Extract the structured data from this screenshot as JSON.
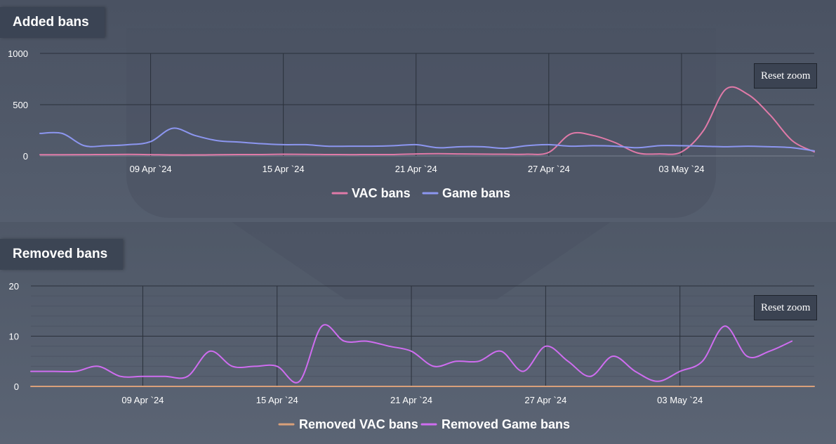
{
  "sections": {
    "added_title": "Added bans",
    "removed_title": "Removed bans",
    "reset_zoom_label": "Reset zoom"
  },
  "colors": {
    "vac": "#e07aa8",
    "game": "#8c96f0",
    "removed_vac": "#d9a07a",
    "removed_game": "#cf6df0",
    "gridline": "#2a303b"
  },
  "chart_data": [
    {
      "type": "line",
      "title": "Added bans",
      "ylim": [
        0,
        1000
      ],
      "yticks": [
        "0",
        "500",
        "1000"
      ],
      "x_range": [
        "2024-04-04",
        "2024-05-09"
      ],
      "xtick_dates": [
        "2024-04-09",
        "2024-04-15",
        "2024-04-21",
        "2024-04-27",
        "2024-05-03"
      ],
      "xtick_labels": [
        "09 Apr `24",
        "15 Apr `24",
        "21 Apr `24",
        "27 Apr `24",
        "03 May `24"
      ],
      "legend": "bottom-center",
      "series": [
        {
          "name": "VAC bans",
          "color": "#e07aa8",
          "points": [
            [
              "2024-04-04",
              12
            ],
            [
              "2024-04-05",
              12
            ],
            [
              "2024-04-06",
              13
            ],
            [
              "2024-04-07",
              14
            ],
            [
              "2024-04-08",
              15
            ],
            [
              "2024-04-09",
              13
            ],
            [
              "2024-04-10",
              10
            ],
            [
              "2024-04-11",
              10
            ],
            [
              "2024-04-12",
              12
            ],
            [
              "2024-04-13",
              14
            ],
            [
              "2024-04-14",
              14
            ],
            [
              "2024-04-15",
              17
            ],
            [
              "2024-04-16",
              16
            ],
            [
              "2024-04-17",
              14
            ],
            [
              "2024-04-18",
              13
            ],
            [
              "2024-04-19",
              14
            ],
            [
              "2024-04-20",
              14
            ],
            [
              "2024-04-21",
              20
            ],
            [
              "2024-04-22",
              22
            ],
            [
              "2024-04-23",
              20
            ],
            [
              "2024-04-24",
              18
            ],
            [
              "2024-04-25",
              17
            ],
            [
              "2024-04-26",
              17
            ],
            [
              "2024-04-27",
              35
            ],
            [
              "2024-04-28",
              215
            ],
            [
              "2024-04-29",
              200
            ],
            [
              "2024-04-30",
              130
            ],
            [
              "2024-05-01",
              30
            ],
            [
              "2024-05-02",
              20
            ],
            [
              "2024-05-03",
              40
            ],
            [
              "2024-05-04",
              250
            ],
            [
              "2024-05-05",
              650
            ],
            [
              "2024-05-06",
              600
            ],
            [
              "2024-05-07",
              400
            ],
            [
              "2024-05-08",
              150
            ],
            [
              "2024-05-09",
              40
            ]
          ]
        },
        {
          "name": "Game bans",
          "color": "#8c96f0",
          "points": [
            [
              "2024-04-04",
              220
            ],
            [
              "2024-04-05",
              220
            ],
            [
              "2024-04-06",
              100
            ],
            [
              "2024-04-07",
              100
            ],
            [
              "2024-04-08",
              110
            ],
            [
              "2024-04-09",
              140
            ],
            [
              "2024-04-10",
              270
            ],
            [
              "2024-04-11",
              200
            ],
            [
              "2024-04-12",
              150
            ],
            [
              "2024-04-13",
              135
            ],
            [
              "2024-04-14",
              120
            ],
            [
              "2024-04-15",
              110
            ],
            [
              "2024-04-16",
              110
            ],
            [
              "2024-04-17",
              95
            ],
            [
              "2024-04-18",
              95
            ],
            [
              "2024-04-19",
              95
            ],
            [
              "2024-04-20",
              100
            ],
            [
              "2024-04-21",
              110
            ],
            [
              "2024-04-22",
              80
            ],
            [
              "2024-04-23",
              90
            ],
            [
              "2024-04-24",
              90
            ],
            [
              "2024-04-25",
              75
            ],
            [
              "2024-04-26",
              100
            ],
            [
              "2024-04-27",
              110
            ],
            [
              "2024-04-28",
              95
            ],
            [
              "2024-04-29",
              100
            ],
            [
              "2024-04-30",
              95
            ],
            [
              "2024-05-01",
              80
            ],
            [
              "2024-05-02",
              100
            ],
            [
              "2024-05-03",
              100
            ],
            [
              "2024-05-04",
              95
            ],
            [
              "2024-05-05",
              90
            ],
            [
              "2024-05-06",
              95
            ],
            [
              "2024-05-07",
              90
            ],
            [
              "2024-05-08",
              80
            ],
            [
              "2024-05-09",
              50
            ]
          ]
        }
      ]
    },
    {
      "type": "line",
      "title": "Removed bans",
      "ylim": [
        0,
        20
      ],
      "yticks": [
        "0",
        "10",
        "20"
      ],
      "x_range": [
        "2024-04-04",
        "2024-05-09"
      ],
      "xtick_dates": [
        "2024-04-09",
        "2024-04-15",
        "2024-04-21",
        "2024-04-27",
        "2024-05-03"
      ],
      "xtick_labels": [
        "09 Apr `24",
        "15 Apr `24",
        "21 Apr `24",
        "27 Apr `24",
        "03 May `24"
      ],
      "legend": "bottom-center",
      "series": [
        {
          "name": "Removed VAC bans",
          "color": "#d9a07a",
          "points": [
            [
              "2024-04-04",
              0
            ],
            [
              "2024-05-09",
              0
            ]
          ]
        },
        {
          "name": "Removed Game bans",
          "color": "#cf6df0",
          "points": [
            [
              "2024-04-04",
              3
            ],
            [
              "2024-04-05",
              3
            ],
            [
              "2024-04-06",
              3
            ],
            [
              "2024-04-07",
              4
            ],
            [
              "2024-04-08",
              2
            ],
            [
              "2024-04-09",
              2
            ],
            [
              "2024-04-10",
              2
            ],
            [
              "2024-04-11",
              2
            ],
            [
              "2024-04-12",
              7
            ],
            [
              "2024-04-13",
              4
            ],
            [
              "2024-04-14",
              4
            ],
            [
              "2024-04-15",
              4
            ],
            [
              "2024-04-16",
              1
            ],
            [
              "2024-04-17",
              12
            ],
            [
              "2024-04-18",
              9
            ],
            [
              "2024-04-19",
              9
            ],
            [
              "2024-04-20",
              8
            ],
            [
              "2024-04-21",
              7
            ],
            [
              "2024-04-22",
              4
            ],
            [
              "2024-04-23",
              5
            ],
            [
              "2024-04-24",
              5
            ],
            [
              "2024-04-25",
              7
            ],
            [
              "2024-04-26",
              3
            ],
            [
              "2024-04-27",
              8
            ],
            [
              "2024-04-28",
              5
            ],
            [
              "2024-04-29",
              2
            ],
            [
              "2024-04-30",
              6
            ],
            [
              "2024-05-01",
              3
            ],
            [
              "2024-05-02",
              1
            ],
            [
              "2024-05-03",
              3
            ],
            [
              "2024-05-04",
              5
            ],
            [
              "2024-05-05",
              12
            ],
            [
              "2024-05-06",
              6
            ],
            [
              "2024-05-07",
              7
            ],
            [
              "2024-05-08",
              9
            ]
          ]
        }
      ]
    }
  ]
}
